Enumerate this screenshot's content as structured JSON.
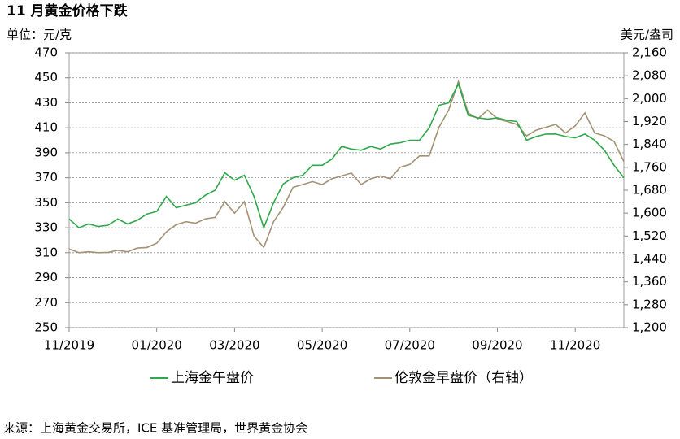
{
  "chart_data": {
    "type": "line",
    "title": "11 月黄金价格下跌",
    "y_label": "单位：元/克",
    "y2_label": "美元/盎司",
    "source": "来源：上海黄金交易所，ICE 基准管理局，世界黄金协会",
    "categories": [
      "11/2019",
      null,
      null,
      null,
      null,
      null,
      null,
      null,
      null,
      "01/2020",
      null,
      null,
      null,
      null,
      null,
      null,
      null,
      "03/2020",
      null,
      null,
      null,
      null,
      null,
      null,
      null,
      null,
      "05/2020",
      null,
      null,
      null,
      null,
      null,
      null,
      null,
      null,
      "07/2020",
      null,
      null,
      null,
      null,
      null,
      null,
      null,
      null,
      "09/2020",
      null,
      null,
      null,
      null,
      null,
      null,
      null,
      "11/2020",
      null,
      null,
      null,
      null,
      null
    ],
    "series": [
      {
        "name": "上海金午盘价",
        "color": "#2ea84a",
        "axis": "y",
        "values": [
          337,
          330,
          333,
          331,
          332,
          337,
          333,
          336,
          341,
          343,
          355,
          346,
          348,
          350,
          356,
          360,
          374,
          368,
          372,
          355,
          330,
          350,
          365,
          370,
          372,
          380,
          380,
          385,
          395,
          393,
          392,
          395,
          393,
          397,
          398,
          400,
          400,
          410,
          428,
          430,
          445,
          420,
          418,
          417,
          418,
          416,
          415,
          400,
          403,
          405,
          405,
          403,
          402,
          405,
          400,
          392,
          380,
          370
        ]
      },
      {
        "name": "伦敦金早盘价（右轴）",
        "color": "#a39274",
        "axis": "y2",
        "values": [
          1475,
          1462,
          1465,
          1462,
          1463,
          1470,
          1465,
          1478,
          1480,
          1495,
          1535,
          1560,
          1570,
          1565,
          1580,
          1585,
          1640,
          1600,
          1640,
          1520,
          1480,
          1570,
          1620,
          1690,
          1700,
          1710,
          1700,
          1720,
          1730,
          1740,
          1700,
          1720,
          1730,
          1720,
          1760,
          1770,
          1800,
          1800,
          1900,
          1960,
          2060,
          1950,
          1930,
          1960,
          1930,
          1920,
          1910,
          1870,
          1890,
          1900,
          1910,
          1880,
          1905,
          1950,
          1880,
          1870,
          1850,
          1780
        ]
      }
    ],
    "ylim": [
      250,
      470
    ],
    "yticks": [
      250,
      270,
      290,
      310,
      330,
      350,
      370,
      390,
      410,
      430,
      450,
      470
    ],
    "y2lim": [
      1200,
      2160
    ],
    "y2ticks": [
      {
        "value": 1200,
        "label": "1,200"
      },
      {
        "value": 1280,
        "label": "1,280"
      },
      {
        "value": 1360,
        "label": "1,360"
      },
      {
        "value": 1440,
        "label": "1,440"
      },
      {
        "value": 1520,
        "label": "1,520"
      },
      {
        "value": 1600,
        "label": "1,600"
      },
      {
        "value": 1680,
        "label": "1,680"
      },
      {
        "value": 1760,
        "label": "1,760"
      },
      {
        "value": 1840,
        "label": "1,840"
      },
      {
        "value": 1920,
        "label": "1,920"
      },
      {
        "value": 2000,
        "label": "2,000"
      },
      {
        "value": 2080,
        "label": "2,080"
      },
      {
        "value": 2160,
        "label": "2,160"
      }
    ],
    "grid": true,
    "legend": "bottom"
  }
}
